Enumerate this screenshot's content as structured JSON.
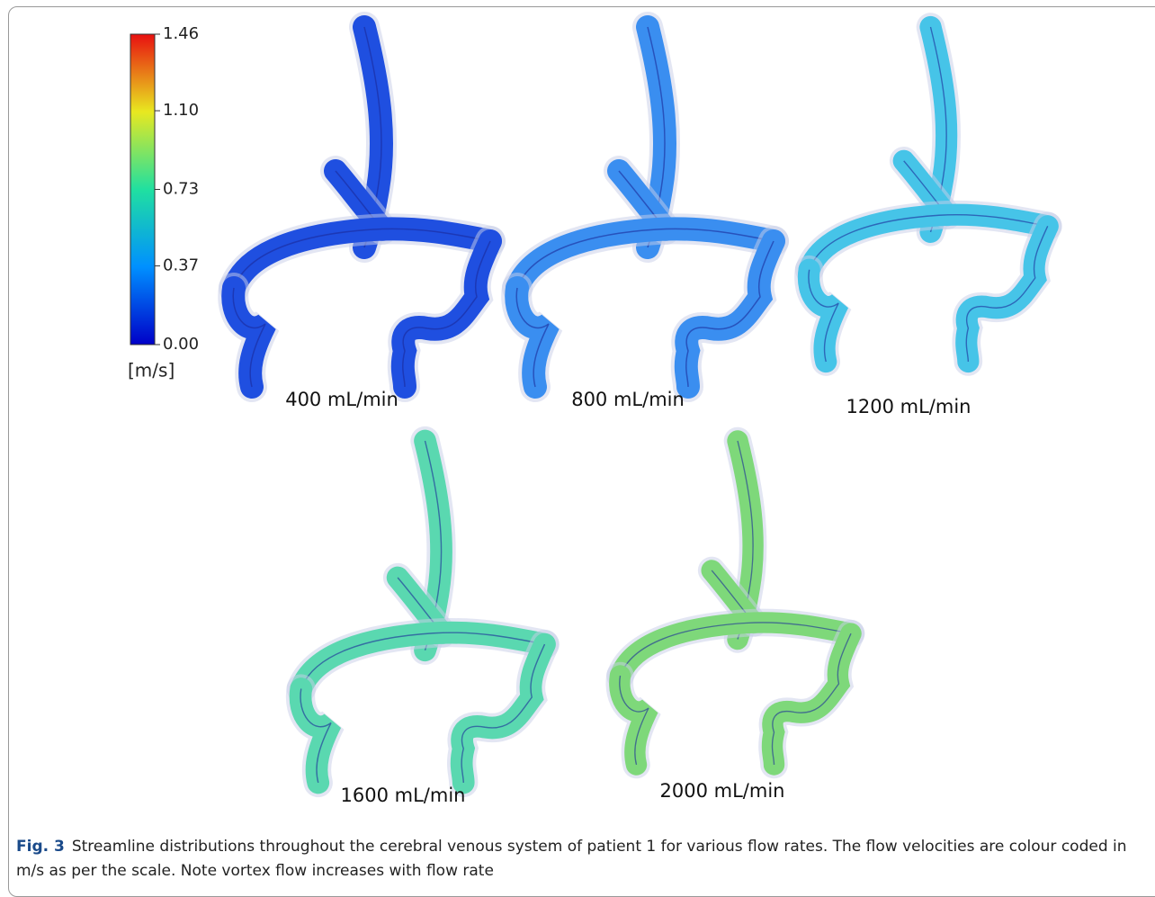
{
  "colorbar": {
    "lim": [
      0,
      1.46
    ],
    "ticks": [
      {
        "value": 1.46,
        "label": "1.46"
      },
      {
        "value": 1.1,
        "label": "1.10"
      },
      {
        "value": 0.73,
        "label": "0.73"
      },
      {
        "value": 0.37,
        "label": "0.37"
      },
      {
        "value": 0,
        "label": "0.00"
      }
    ],
    "unit": "[m/s]"
  },
  "panels": [
    {
      "label": "400 mL/min",
      "color": "#1f4fe0"
    },
    {
      "label": "800 mL/min",
      "color": "#3a8ef0"
    },
    {
      "label": "1200 mL/min",
      "color": "#46c4e8"
    },
    {
      "label": "1600 mL/min",
      "color": "#5ad8b0"
    },
    {
      "label": "2000 mL/min",
      "color": "#7ed87a"
    }
  ],
  "caption": {
    "label": "Fig. 3",
    "text": "Streamline distributions throughout the cerebral venous system of patient 1 for various flow rates. The flow velocities are colour coded in m/s as per the scale. Note vortex flow increases with flow rate"
  }
}
